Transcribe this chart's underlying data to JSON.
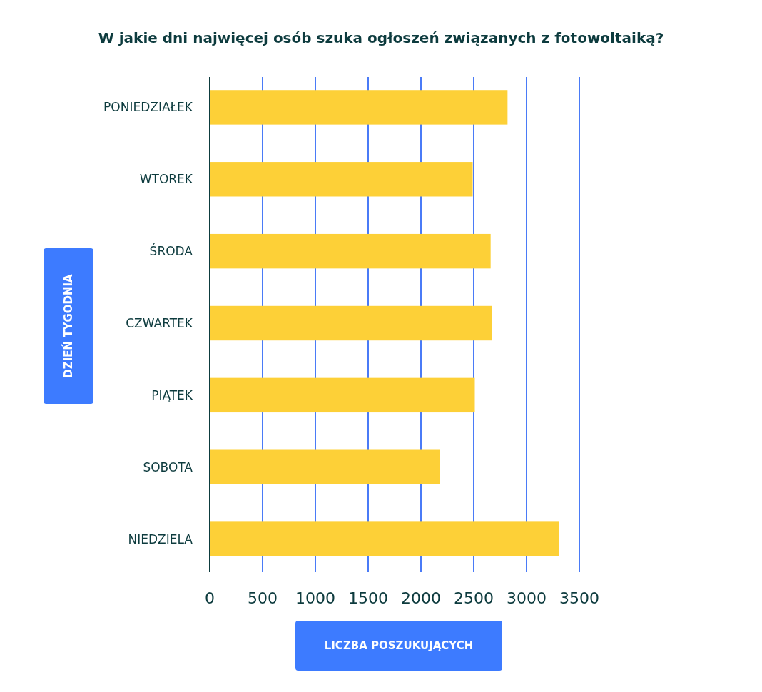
{
  "chart_data": {
    "type": "bar",
    "orientation": "horizontal",
    "title": "W jakie dni najwięcej osób szuka ogłoszeń związanych z fotowoltaiką?",
    "xlabel": "LICZBA POSZUKUJĄCYCH",
    "ylabel": "DZIEŃ TYGODNIA",
    "categories": [
      "PONIEDZIAŁEK",
      "WTOREK",
      "ŚRODA",
      "CZWARTEK",
      "PIĄTEK",
      "SOBOTA",
      "NIEDZIELA"
    ],
    "values": [
      2820,
      2490,
      2660,
      2670,
      2510,
      2180,
      3310
    ],
    "color": "#fdd037",
    "xlim": [
      0,
      3500
    ],
    "xticks": [
      0,
      500,
      1000,
      1500,
      2000,
      2500,
      3000,
      3500
    ],
    "grid": "x"
  }
}
